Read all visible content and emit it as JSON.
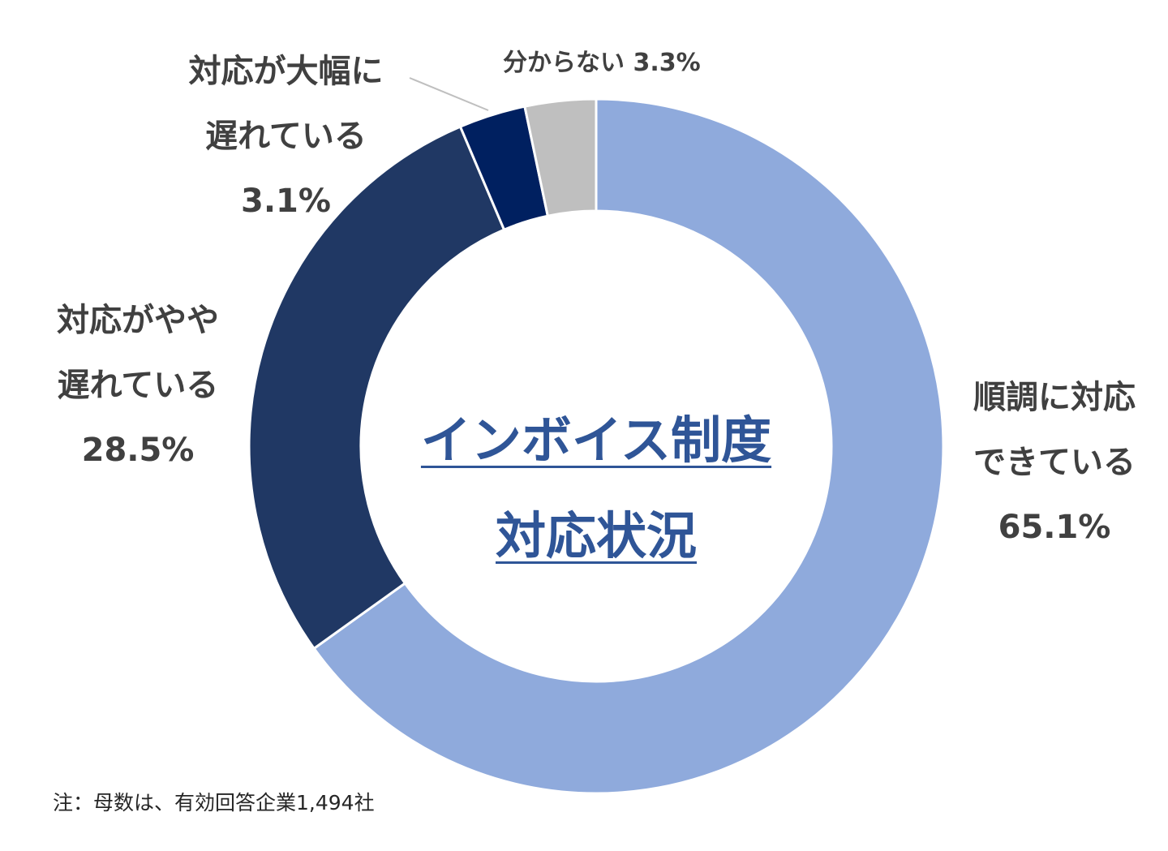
{
  "chart_data": {
    "type": "pie",
    "donut": true,
    "title_lines": [
      "インボイス制度",
      "対応状況"
    ],
    "slices": [
      {
        "label_lines": [
          "順調に対応",
          "できている"
        ],
        "value": 65.1,
        "value_label": "65.1%",
        "color": "#8FAADC"
      },
      {
        "label_lines": [
          "対応がやや",
          "遅れている"
        ],
        "value": 28.5,
        "value_label": "28.5%",
        "color": "#203864"
      },
      {
        "label_lines": [
          "対応が大幅に",
          "遅れている"
        ],
        "value": 3.1,
        "value_label": "3.1%",
        "color": "#002060"
      },
      {
        "label_lines": [
          "分からない"
        ],
        "value": 3.3,
        "value_label": "3.3%",
        "color": "#BFBFBF"
      }
    ],
    "start": "12 o'clock",
    "direction": "clockwise",
    "note": "注：母数は、有効回答企業1,494社"
  }
}
